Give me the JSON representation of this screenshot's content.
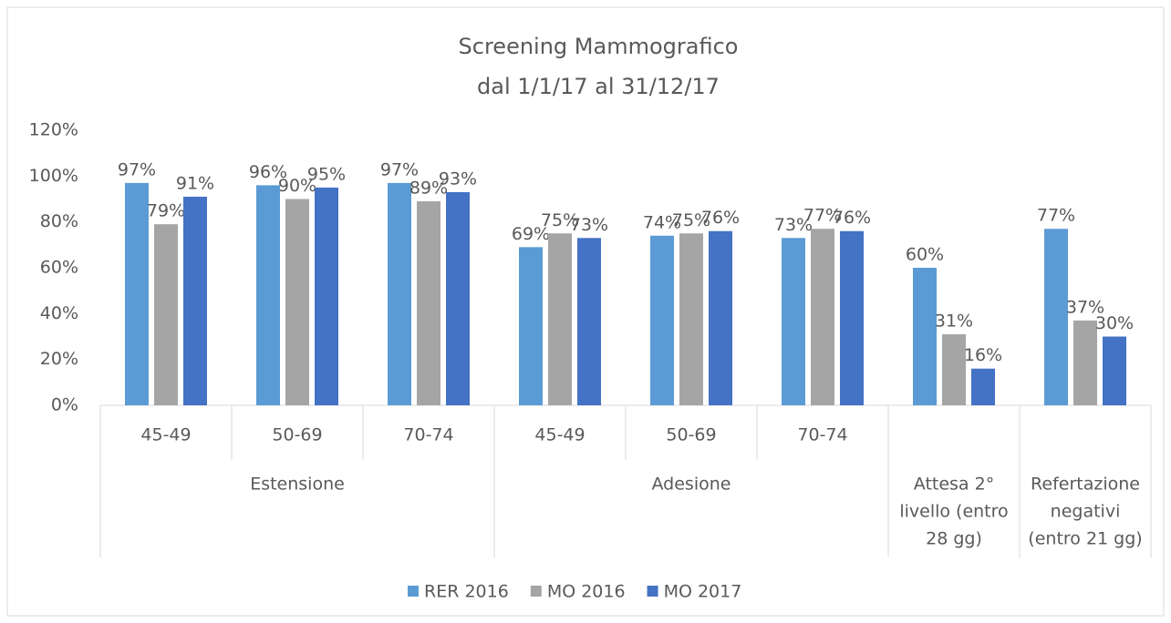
{
  "chart_data": {
    "type": "bar",
    "title": "Screening Mammografico",
    "subtitle": "dal 1/1/17 al 31/12/17",
    "categories": [
      "45-49",
      "50-69",
      "70-74",
      "45-49",
      "50-69",
      "70-74",
      null,
      null
    ],
    "groups": [
      {
        "label": [
          "Estensione"
        ],
        "span": 3
      },
      {
        "label": [
          "Adesione"
        ],
        "span": 3
      },
      {
        "label": [
          "Attesa 2°",
          "livello (entro",
          "28 gg)"
        ],
        "span": 1
      },
      {
        "label": [
          "Refertazione",
          "negativi",
          "(entro 21 gg)"
        ],
        "span": 1
      }
    ],
    "series": [
      {
        "name": "RER 2016",
        "color": "#5b9bd5",
        "values": [
          97,
          96,
          97,
          69,
          74,
          73,
          60,
          77
        ],
        "value_labels": [
          "97%",
          "96%",
          "97%",
          "69%",
          "74%",
          "73%",
          "60%",
          "77%"
        ]
      },
      {
        "name": "MO 2016",
        "color": "#a5a5a5",
        "values": [
          79,
          90,
          89,
          75,
          75,
          77,
          31,
          37
        ],
        "value_labels": [
          "79%",
          "90%",
          "89%",
          "75%",
          "75%",
          "77%",
          "31%",
          "37%"
        ]
      },
      {
        "name": "MO 2017",
        "color": "#4472c4",
        "values": [
          91,
          95,
          93,
          73,
          76,
          76,
          16,
          30
        ],
        "value_labels": [
          "91%",
          "95%",
          "93%",
          "73%",
          "76%",
          "76%",
          "16%",
          "30%"
        ]
      }
    ],
    "ylim": [
      0,
      120
    ],
    "yticks": [
      {
        "value": 0,
        "label": "0%"
      },
      {
        "value": 20,
        "label": "20%"
      },
      {
        "value": 40,
        "label": "40%"
      },
      {
        "value": 60,
        "label": "60%"
      },
      {
        "value": 80,
        "label": "80%"
      },
      {
        "value": 100,
        "label": "100%"
      },
      {
        "value": 120,
        "label": "120%"
      }
    ],
    "grid": false,
    "legend": "bottom"
  }
}
